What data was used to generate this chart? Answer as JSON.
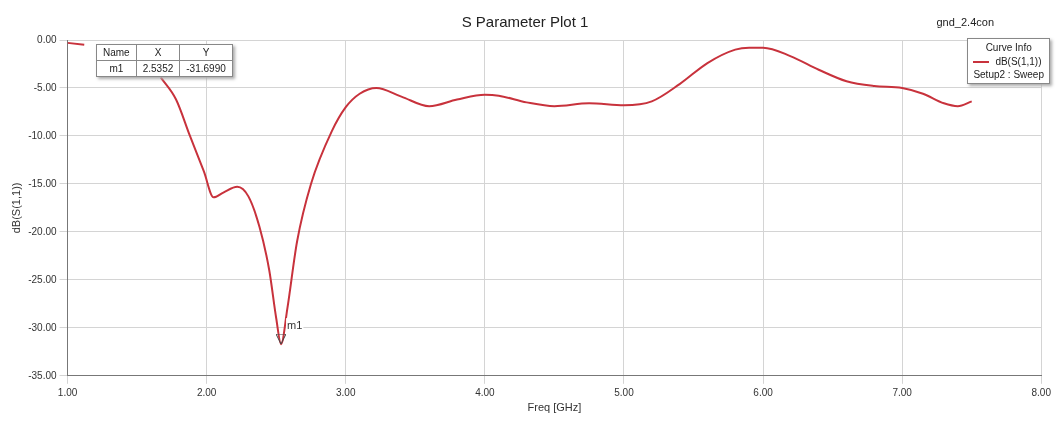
{
  "chart_data": {
    "type": "line",
    "title": "S Parameter Plot 1",
    "subtitle": "gnd_2.4con",
    "xlabel": "Freq [GHz]",
    "ylabel": "dB(S(1,1))",
    "legend_title": "Curve Info",
    "legend": "top right",
    "grid": true,
    "marker": "none",
    "line_style": "solid",
    "xlim": [
      1,
      8
    ],
    "ylim": [
      -35,
      0
    ],
    "xticks": [
      {
        "value": 1,
        "label": "1.00"
      },
      {
        "value": 2,
        "label": "2.00"
      },
      {
        "value": 3,
        "label": "3.00"
      },
      {
        "value": 4,
        "label": "4.00"
      },
      {
        "value": 5,
        "label": "5.00"
      },
      {
        "value": 6,
        "label": "6.00"
      },
      {
        "value": 7,
        "label": "7.00"
      },
      {
        "value": 8,
        "label": "8.00"
      }
    ],
    "yticks": [
      {
        "value": -35,
        "label": "-35.00"
      },
      {
        "value": -30,
        "label": "-30.00"
      },
      {
        "value": -25,
        "label": "-25.00"
      },
      {
        "value": -20,
        "label": "-20.00"
      },
      {
        "value": -15,
        "label": "-15.00"
      },
      {
        "value": -10,
        "label": "-10.00"
      },
      {
        "value": -5,
        "label": "-5.00"
      },
      {
        "value": 0,
        "label": "0.00"
      }
    ],
    "x": [
      1.0,
      1.12,
      1.3,
      1.5,
      1.67,
      1.78,
      1.88,
      1.98,
      2.05,
      2.12,
      2.22,
      2.3,
      2.38,
      2.45,
      2.5,
      2.5352,
      2.58,
      2.65,
      2.75,
      2.9,
      3.0,
      3.1,
      3.22,
      3.4,
      3.6,
      3.8,
      4.0,
      4.1,
      4.3,
      4.5,
      4.75,
      5.0,
      5.2,
      5.4,
      5.6,
      5.8,
      5.9,
      6.0,
      6.2,
      6.4,
      6.6,
      6.8,
      7.0,
      7.15,
      7.3,
      7.4,
      7.5
    ],
    "series": [
      {
        "name": "dB(S(1,1))",
        "color": "#c8323c",
        "values": [
          -0.3,
          -0.5,
          null,
          null,
          -3.9,
          -6.2,
          -10.0,
          -13.7,
          -16.4,
          -15.9,
          -15.3,
          -16.3,
          -19.5,
          -24.0,
          -29.0,
          -31.699,
          -28.0,
          -21.0,
          -15.0,
          -9.5,
          -7.0,
          -5.6,
          -5.0,
          -5.9,
          -6.9,
          -6.2,
          -5.7,
          -5.8,
          -6.5,
          -6.9,
          -6.6,
          -6.8,
          -6.4,
          -4.6,
          -2.4,
          -1.0,
          -0.8,
          -0.8,
          -1.7,
          -3.1,
          -4.3,
          -4.8,
          -5.0,
          -5.6,
          -6.6,
          -6.9,
          -6.4
        ]
      }
    ],
    "annotations": [
      {
        "text": "m1",
        "x": 2.5352,
        "y": -31.699
      },
      "Name",
      "X",
      "Y",
      "m1",
      "2.5352",
      "-31.6990",
      "Setup2 : Sweep"
    ]
  }
}
